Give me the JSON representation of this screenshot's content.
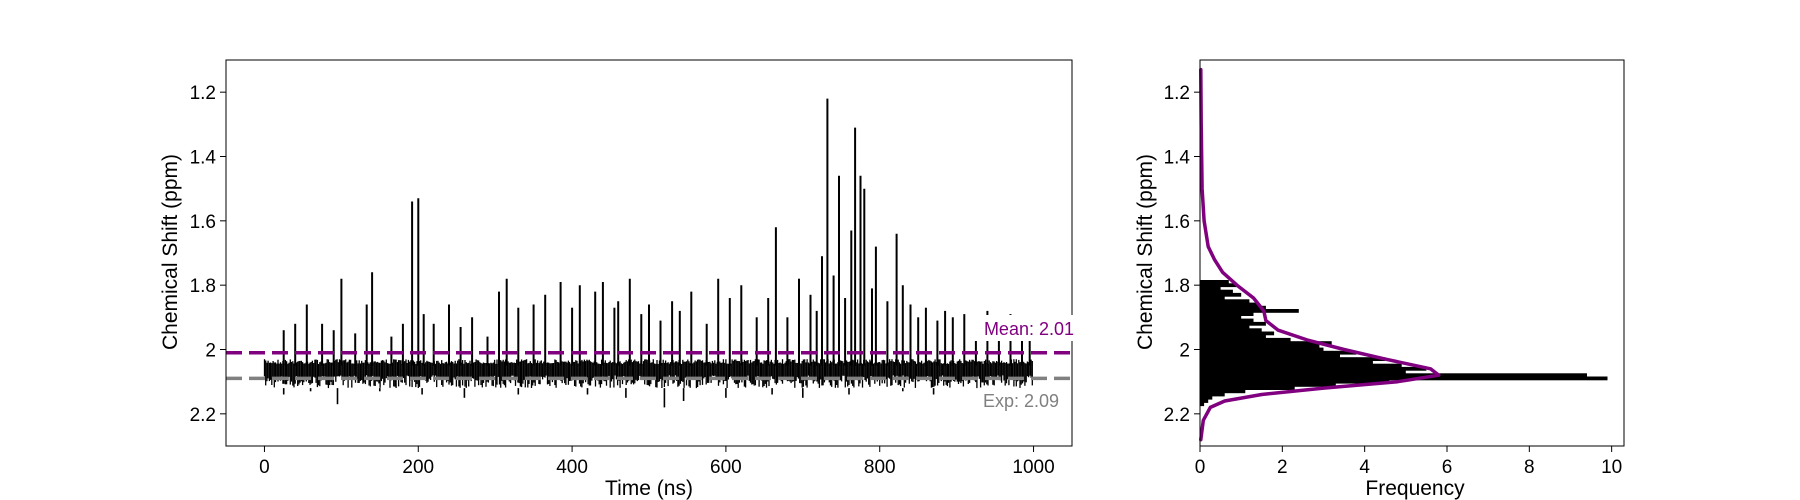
{
  "chart_data": [
    {
      "type": "line",
      "title": "",
      "xlabel": "Time (ns)",
      "ylabel": "Chemical Shift (ppm)",
      "xlim": [
        -50,
        1050
      ],
      "ylim": [
        2.3,
        1.1
      ],
      "y_inverted": true,
      "xticks": [
        0,
        200,
        400,
        600,
        800,
        1000
      ],
      "yticks": [
        1.2,
        1.4,
        1.6,
        1.8,
        2.0,
        2.2
      ],
      "grid": false,
      "colors": {
        "trace": "#000000",
        "mean": "#800080",
        "exp": "#808080"
      },
      "series": [
        {
          "x_start": 0,
          "x_end": 1000,
          "baseline": 2.05,
          "noise_band": [
            2.03,
            2.12
          ],
          "spikes": [
            {
              "x": 25,
              "y": 1.94
            },
            {
              "x": 40,
              "y": 1.92
            },
            {
              "x": 55,
              "y": 1.86
            },
            {
              "x": 75,
              "y": 1.92
            },
            {
              "x": 90,
              "y": 1.94
            },
            {
              "x": 100,
              "y": 1.78
            },
            {
              "x": 118,
              "y": 1.95
            },
            {
              "x": 133,
              "y": 1.86
            },
            {
              "x": 140,
              "y": 1.76
            },
            {
              "x": 165,
              "y": 1.96
            },
            {
              "x": 180,
              "y": 1.92
            },
            {
              "x": 192,
              "y": 1.54
            },
            {
              "x": 200,
              "y": 1.53
            },
            {
              "x": 207,
              "y": 1.89
            },
            {
              "x": 220,
              "y": 1.92
            },
            {
              "x": 240,
              "y": 1.86
            },
            {
              "x": 255,
              "y": 1.93
            },
            {
              "x": 270,
              "y": 1.9
            },
            {
              "x": 290,
              "y": 1.96
            },
            {
              "x": 305,
              "y": 1.82
            },
            {
              "x": 315,
              "y": 1.78
            },
            {
              "x": 330,
              "y": 1.87
            },
            {
              "x": 350,
              "y": 1.86
            },
            {
              "x": 365,
              "y": 1.83
            },
            {
              "x": 385,
              "y": 1.79
            },
            {
              "x": 400,
              "y": 1.87
            },
            {
              "x": 410,
              "y": 1.8
            },
            {
              "x": 430,
              "y": 1.82
            },
            {
              "x": 440,
              "y": 1.79
            },
            {
              "x": 455,
              "y": 1.87
            },
            {
              "x": 460,
              "y": 1.85
            },
            {
              "x": 475,
              "y": 1.78
            },
            {
              "x": 490,
              "y": 1.89
            },
            {
              "x": 500,
              "y": 1.86
            },
            {
              "x": 515,
              "y": 1.91
            },
            {
              "x": 530,
              "y": 1.85
            },
            {
              "x": 540,
              "y": 1.88
            },
            {
              "x": 555,
              "y": 1.82
            },
            {
              "x": 575,
              "y": 1.92
            },
            {
              "x": 590,
              "y": 1.78
            },
            {
              "x": 605,
              "y": 1.84
            },
            {
              "x": 620,
              "y": 1.8
            },
            {
              "x": 640,
              "y": 1.9
            },
            {
              "x": 655,
              "y": 1.84
            },
            {
              "x": 665,
              "y": 1.62
            },
            {
              "x": 680,
              "y": 1.9
            },
            {
              "x": 695,
              "y": 1.78
            },
            {
              "x": 710,
              "y": 1.83
            },
            {
              "x": 718,
              "y": 1.88
            },
            {
              "x": 725,
              "y": 1.71
            },
            {
              "x": 732,
              "y": 1.22
            },
            {
              "x": 740,
              "y": 1.77
            },
            {
              "x": 747,
              "y": 1.46
            },
            {
              "x": 755,
              "y": 1.84
            },
            {
              "x": 763,
              "y": 1.63
            },
            {
              "x": 768,
              "y": 1.31
            },
            {
              "x": 775,
              "y": 1.46
            },
            {
              "x": 780,
              "y": 1.5
            },
            {
              "x": 790,
              "y": 1.81
            },
            {
              "x": 795,
              "y": 1.68
            },
            {
              "x": 810,
              "y": 1.85
            },
            {
              "x": 822,
              "y": 1.64
            },
            {
              "x": 830,
              "y": 1.8
            },
            {
              "x": 840,
              "y": 1.86
            },
            {
              "x": 850,
              "y": 1.9
            },
            {
              "x": 860,
              "y": 1.87
            },
            {
              "x": 875,
              "y": 1.91
            },
            {
              "x": 885,
              "y": 1.88
            },
            {
              "x": 895,
              "y": 1.9
            },
            {
              "x": 910,
              "y": 1.89
            },
            {
              "x": 925,
              "y": 1.92
            },
            {
              "x": 940,
              "y": 1.88
            },
            {
              "x": 955,
              "y": 1.9
            },
            {
              "x": 970,
              "y": 1.89
            },
            {
              "x": 985,
              "y": 1.91
            },
            {
              "x": 995,
              "y": 1.92
            }
          ],
          "dips": [
            {
              "x": 25,
              "y": 2.14
            },
            {
              "x": 60,
              "y": 2.13
            },
            {
              "x": 95,
              "y": 2.17
            },
            {
              "x": 150,
              "y": 2.13
            },
            {
              "x": 205,
              "y": 2.14
            },
            {
              "x": 260,
              "y": 2.15
            },
            {
              "x": 330,
              "y": 2.14
            },
            {
              "x": 420,
              "y": 2.14
            },
            {
              "x": 470,
              "y": 2.15
            },
            {
              "x": 520,
              "y": 2.18
            },
            {
              "x": 545,
              "y": 2.16
            },
            {
              "x": 600,
              "y": 2.15
            },
            {
              "x": 660,
              "y": 2.14
            },
            {
              "x": 700,
              "y": 2.15
            },
            {
              "x": 760,
              "y": 2.14
            },
            {
              "x": 830,
              "y": 2.13
            },
            {
              "x": 870,
              "y": 2.14
            }
          ]
        }
      ],
      "hlines": [
        {
          "y": 2.01,
          "label": "Mean: 2.01",
          "color": "#800080"
        },
        {
          "y": 2.09,
          "label": "Exp: 2.09",
          "color": "#808080"
        }
      ]
    },
    {
      "type": "histogram",
      "orientation": "horizontal",
      "title": "",
      "xlabel": "Frequency",
      "ylabel": "Chemical Shift (ppm)",
      "xlim": [
        0,
        10.3
      ],
      "ylim": [
        2.3,
        1.1
      ],
      "y_inverted": true,
      "xticks": [
        0,
        2,
        4,
        6,
        8,
        10
      ],
      "yticks": [
        1.2,
        1.4,
        1.6,
        1.8,
        2.0,
        2.2
      ],
      "grid": false,
      "colors": {
        "bars": "#000000",
        "kde": "#800080"
      },
      "bins": [
        {
          "y": 1.79,
          "count": 0.7
        },
        {
          "y": 1.8,
          "count": 0.9
        },
        {
          "y": 1.81,
          "count": 0.5
        },
        {
          "y": 1.82,
          "count": 0.8
        },
        {
          "y": 1.83,
          "count": 1.0
        },
        {
          "y": 1.84,
          "count": 0.6
        },
        {
          "y": 1.85,
          "count": 1.2
        },
        {
          "y": 1.86,
          "count": 1.4
        },
        {
          "y": 1.87,
          "count": 1.6
        },
        {
          "y": 1.88,
          "count": 2.4
        },
        {
          "y": 1.89,
          "count": 1.3
        },
        {
          "y": 1.9,
          "count": 1.0
        },
        {
          "y": 1.91,
          "count": 1.3
        },
        {
          "y": 1.92,
          "count": 1.6
        },
        {
          "y": 1.93,
          "count": 1.2
        },
        {
          "y": 1.94,
          "count": 1.5
        },
        {
          "y": 1.95,
          "count": 1.8
        },
        {
          "y": 1.96,
          "count": 1.6
        },
        {
          "y": 1.97,
          "count": 2.2
        },
        {
          "y": 1.98,
          "count": 3.2
        },
        {
          "y": 1.99,
          "count": 2.9
        },
        {
          "y": 2.0,
          "count": 3.0
        },
        {
          "y": 2.01,
          "count": 3.8
        },
        {
          "y": 2.02,
          "count": 3.4
        },
        {
          "y": 2.03,
          "count": 4.5
        },
        {
          "y": 2.04,
          "count": 4.2
        },
        {
          "y": 2.05,
          "count": 4.9
        },
        {
          "y": 2.06,
          "count": 5.5
        },
        {
          "y": 2.07,
          "count": 5.0
        },
        {
          "y": 2.08,
          "count": 9.4
        },
        {
          "y": 2.09,
          "count": 9.9
        },
        {
          "y": 2.1,
          "count": 4.6
        },
        {
          "y": 2.11,
          "count": 3.3
        },
        {
          "y": 2.12,
          "count": 2.3
        },
        {
          "y": 2.13,
          "count": 1.1
        },
        {
          "y": 2.14,
          "count": 0.6
        },
        {
          "y": 2.15,
          "count": 0.3
        },
        {
          "y": 2.16,
          "count": 0.2
        },
        {
          "y": 2.17,
          "count": 0.1
        }
      ],
      "kde": [
        {
          "y": 1.13,
          "x": 0.02
        },
        {
          "y": 1.3,
          "x": 0.03
        },
        {
          "y": 1.5,
          "x": 0.05
        },
        {
          "y": 1.6,
          "x": 0.1
        },
        {
          "y": 1.68,
          "x": 0.2
        },
        {
          "y": 1.72,
          "x": 0.35
        },
        {
          "y": 1.76,
          "x": 0.55
        },
        {
          "y": 1.8,
          "x": 0.9
        },
        {
          "y": 1.84,
          "x": 1.3
        },
        {
          "y": 1.88,
          "x": 1.55
        },
        {
          "y": 1.91,
          "x": 1.6
        },
        {
          "y": 1.94,
          "x": 1.9
        },
        {
          "y": 1.97,
          "x": 2.6
        },
        {
          "y": 2.0,
          "x": 3.5
        },
        {
          "y": 2.03,
          "x": 4.5
        },
        {
          "y": 2.06,
          "x": 5.6
        },
        {
          "y": 2.08,
          "x": 5.8
        },
        {
          "y": 2.1,
          "x": 4.8
        },
        {
          "y": 2.12,
          "x": 3.0
        },
        {
          "y": 2.14,
          "x": 1.5
        },
        {
          "y": 2.16,
          "x": 0.6
        },
        {
          "y": 2.18,
          "x": 0.25
        },
        {
          "y": 2.22,
          "x": 0.08
        },
        {
          "y": 2.28,
          "x": 0.02
        }
      ]
    }
  ]
}
